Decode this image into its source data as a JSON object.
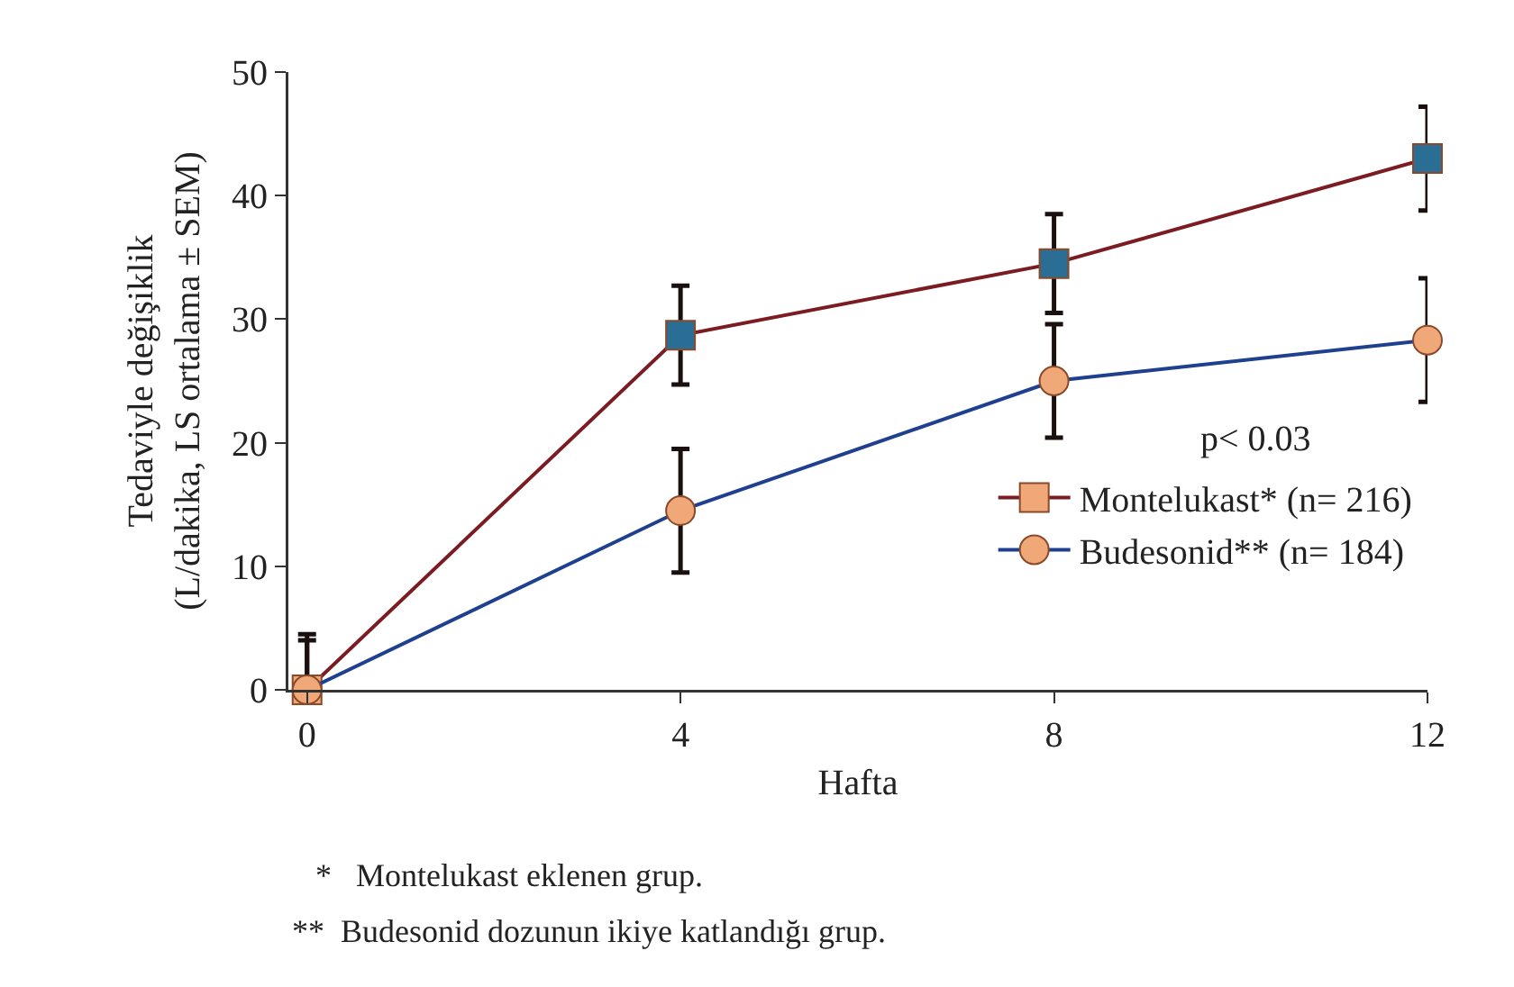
{
  "chart_data": {
    "type": "line",
    "xlabel": "Hafta",
    "ylabel": "Tedaviyle değişiklik\n(L/dakika, LS ortalama ± SEM)",
    "x": [
      0,
      4,
      8,
      12
    ],
    "series": [
      {
        "name": "Montelukast* (n= 216)",
        "color": "#7a1c22",
        "colors": [
          "#f0a878",
          "#2a6e96",
          "#2a6e96",
          "#2a6e96"
        ],
        "marker": "square",
        "values": [
          0,
          28.7,
          34.5,
          43
        ],
        "errors": [
          4.5,
          4,
          4,
          4.2
        ]
      },
      {
        "name": "Budesonid** (n= 184)",
        "color": "#1f3f8f",
        "colors": [
          "#f0a878",
          "#f0a878",
          "#f0a878",
          "#f0a878"
        ],
        "marker": "circle",
        "values": [
          0,
          14.5,
          25,
          28.3
        ],
        "errors": [
          4,
          5,
          4.6,
          5
        ]
      }
    ],
    "xlim": [
      -0.2,
      12
    ],
    "xticks": [
      0,
      4,
      8,
      12
    ],
    "ylim": [
      0,
      50
    ],
    "yticks": [
      0,
      10,
      20,
      30,
      40,
      50
    ],
    "grid": false,
    "legend": "bottom right",
    "annotations": [
      "p< 0.03",
      "*   Montelukast eklenen grup.",
      "**  Budesonid dozunun ikiye katlandığı grup."
    ]
  }
}
